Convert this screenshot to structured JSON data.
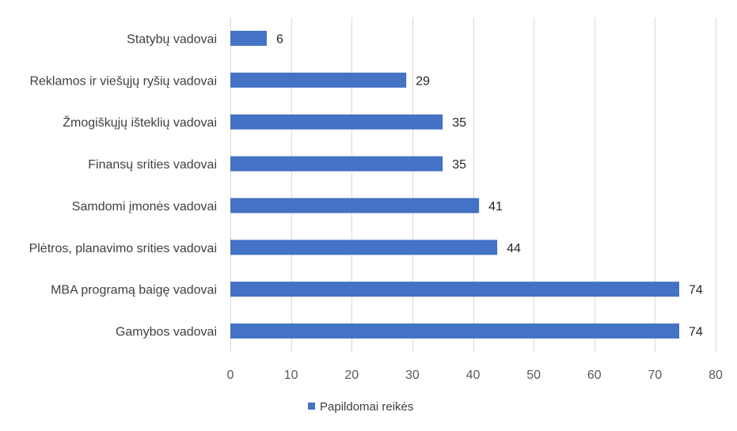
{
  "chart_data": {
    "type": "bar",
    "orientation": "horizontal",
    "categories": [
      "Statybų vadovai",
      "Reklamos ir viešųjų ryšių vadovai",
      "Žmogiškųjų išteklių vadovai",
      "Finansų srities vadovai",
      "Samdomi įmonės vadovai",
      "Plėtros, planavimo srities vadovai",
      "MBA programą baigę vadovai",
      "Gamybos vadovai"
    ],
    "series": [
      {
        "name": "Papildomai reikės",
        "values": [
          6,
          29,
          35,
          35,
          41,
          44,
          74,
          74
        ],
        "color": "#4472c4"
      }
    ],
    "xlim": [
      0,
      80
    ],
    "xticks": [
      0,
      10,
      20,
      30,
      40,
      50,
      60,
      70,
      80
    ],
    "grid": "vertical",
    "legend": "bottom-center",
    "data_labels": true
  }
}
